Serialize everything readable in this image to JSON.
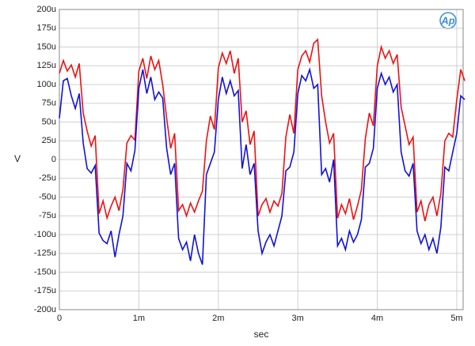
{
  "chart_data": {
    "type": "line",
    "logo": "Ap",
    "x_label": "sec",
    "y_label": "V",
    "x": [
      0,
      5e-05,
      0.0001,
      0.00015,
      0.0002,
      0.00025,
      0.0003,
      0.00035,
      0.0004,
      0.00045,
      0.0005,
      0.00055,
      0.0006,
      0.00065,
      0.0007,
      0.00075,
      0.0008,
      0.00085,
      0.0009,
      0.00095,
      0.001,
      0.00105,
      0.0011,
      0.00115,
      0.0012,
      0.00125,
      0.0013,
      0.00135,
      0.0014,
      0.00145,
      0.0015,
      0.00155,
      0.0016,
      0.00165,
      0.0017,
      0.00175,
      0.0018,
      0.00185,
      0.0019,
      0.00195,
      0.002,
      0.00205,
      0.0021,
      0.00215,
      0.0022,
      0.00225,
      0.0023,
      0.00235,
      0.0024,
      0.00245,
      0.0025,
      0.00255,
      0.0026,
      0.00265,
      0.0027,
      0.00275,
      0.0028,
      0.00285,
      0.0029,
      0.00295,
      0.003,
      0.00305,
      0.0031,
      0.00315,
      0.0032,
      0.00325,
      0.0033,
      0.00335,
      0.0034,
      0.00345,
      0.0035,
      0.00355,
      0.0036,
      0.00365,
      0.0037,
      0.00375,
      0.0038,
      0.00385,
      0.0039,
      0.00395,
      0.004,
      0.00405,
      0.0041,
      0.00415,
      0.0042,
      0.00425,
      0.0043,
      0.00435,
      0.0044,
      0.00445,
      0.0045,
      0.00455,
      0.0046,
      0.00465,
      0.0047,
      0.00475,
      0.0048,
      0.00485,
      0.0049,
      0.00495,
      0.005,
      0.00505,
      0.0051
    ],
    "series": [
      {
        "color": "#ee1111",
        "values": [
          0.000115,
          0.000132,
          0.000118,
          0.000126,
          0.00011,
          0.000128,
          6.2e-05,
          3.8e-05,
          1.8e-05,
          3.2e-05,
          -7.2e-05,
          -5.5e-05,
          -7.8e-05,
          -6.2e-05,
          -5e-05,
          -6.8e-05,
          -4e-05,
          2.2e-05,
          3.2e-05,
          2.6e-05,
          0.000118,
          0.000135,
          0.000108,
          0.000138,
          0.00012,
          0.000132,
          0.0001,
          5.5e-05,
          1.5e-05,
          3.5e-05,
          -6.8e-05,
          -6e-05,
          -7.5e-05,
          -5.8e-05,
          -7e-05,
          -5.5e-05,
          -4.2e-05,
          2.5e-05,
          5.8e-05,
          4e-05,
          0.000122,
          0.000142,
          0.000128,
          0.000145,
          0.000115,
          0.000135,
          5e-05,
          6.5e-05,
          2e-05,
          3.8e-05,
          -7.5e-05,
          -6e-05,
          -5.2e-05,
          -7e-05,
          -5.5e-05,
          -6.2e-05,
          -4.5e-05,
          3e-05,
          6e-05,
          3.5e-05,
          0.00012,
          0.000138,
          0.000145,
          0.00013,
          0.000155,
          0.00016,
          8.5e-05,
          5e-05,
          2.2e-05,
          3.5e-05,
          -7.8e-05,
          -6e-05,
          -7.2e-05,
          -5.2e-05,
          -8e-05,
          -6.2e-05,
          -4e-05,
          2.8e-05,
          6.2e-05,
          4.5e-05,
          0.000125,
          0.00015,
          0.000135,
          0.000145,
          0.000128,
          0.00014,
          7e-05,
          4.5e-05,
          2e-05,
          3e-05,
          -7e-05,
          -5.5e-05,
          -8.2e-05,
          -6e-05,
          -5e-05,
          -7.5e-05,
          -4.5e-05,
          2.5e-05,
          3.5e-05,
          3e-05,
          8e-05,
          0.00012,
          0.000105
        ]
      },
      {
        "color": "#1111dd",
        "values": [
          5.5e-05,
          0.000105,
          0.000108,
          8.5e-05,
          6.8e-05,
          8.8e-05,
          2.2e-05,
          -1.2e-05,
          -1.8e-05,
          -8e-06,
          -9.8e-05,
          -0.000108,
          -0.000112,
          -9.5e-05,
          -0.00013,
          -0.0001,
          -7.5e-05,
          -5e-06,
          -1.5e-05,
          1.2e-05,
          9.5e-05,
          0.00012,
          8.8e-05,
          0.00011,
          8e-05,
          9e-05,
          8.2e-05,
          1.5e-05,
          -2e-05,
          -5e-06,
          -0.000105,
          -0.00012,
          -0.00011,
          -0.000135,
          -0.0001,
          -0.000125,
          -0.00014,
          -2e-05,
          -5e-06,
          1e-05,
          8e-05,
          0.00011,
          8.8e-05,
          0.000105,
          8.5e-05,
          9.2e-05,
          -1.2e-05,
          2e-05,
          -2e-05,
          -5e-06,
          -9.5e-05,
          -0.000125,
          -0.00011,
          -0.0001,
          -0.000115,
          -9.5e-05,
          -7.5e-05,
          -1.5e-05,
          -1e-05,
          1e-05,
          8.8e-05,
          0.000112,
          0.000105,
          0.00012,
          9.5e-05,
          0.0001,
          -2e-05,
          -1.2e-05,
          -3e-05,
          0,
          -0.000115,
          -0.000105,
          -0.00012,
          -9.5e-05,
          -0.00011,
          -0.0001,
          -8e-05,
          -1e-05,
          -5e-06,
          1.5e-05,
          9.5e-05,
          0.000115,
          0.0001,
          0.00011,
          9e-05,
          0.0001,
          1e-05,
          -1.5e-05,
          -2.2e-05,
          -5e-06,
          -9.5e-05,
          -0.000112,
          -0.0001,
          -0.00012,
          -0.000105,
          -0.000125,
          -9e-05,
          -1e-05,
          -1.5e-05,
          1e-05,
          3.5e-05,
          8.5e-05,
          8e-05
        ]
      }
    ],
    "xlim": [
      0,
      0.00508
    ],
    "xticks": [
      0,
      {
        "value": 0.001,
        "label": "1m"
      },
      {
        "value": 0.002,
        "label": "2m"
      },
      {
        "value": 0.003,
        "label": "3m"
      },
      {
        "value": 0.004,
        "label": "4m"
      },
      {
        "value": 0.005,
        "label": "5m"
      }
    ],
    "ylim": [
      -0.0002,
      0.0002
    ],
    "yticks": [
      {
        "value": 0.0002,
        "label": "200u"
      },
      {
        "value": 0.000175,
        "label": "175u"
      },
      {
        "value": 0.00015,
        "label": "150u"
      },
      {
        "value": 0.000125,
        "label": "125u"
      },
      {
        "value": 0.0001,
        "label": "100u"
      },
      {
        "value": 7.5e-05,
        "label": "75u"
      },
      {
        "value": 5e-05,
        "label": "50u"
      },
      {
        "value": 2.5e-05,
        "label": "25u"
      },
      0,
      {
        "value": -2.5e-05,
        "label": "-25u"
      },
      {
        "value": -5e-05,
        "label": "-50u"
      },
      {
        "value": -7.5e-05,
        "label": "-75u"
      },
      {
        "value": -0.0001,
        "label": "-100u"
      },
      {
        "value": -0.000125,
        "label": "-125u"
      },
      {
        "value": -0.00015,
        "label": "-150u"
      },
      {
        "value": -0.000175,
        "label": "-175u"
      },
      {
        "value": -0.0002,
        "label": "-200u"
      }
    ],
    "grid": true
  }
}
